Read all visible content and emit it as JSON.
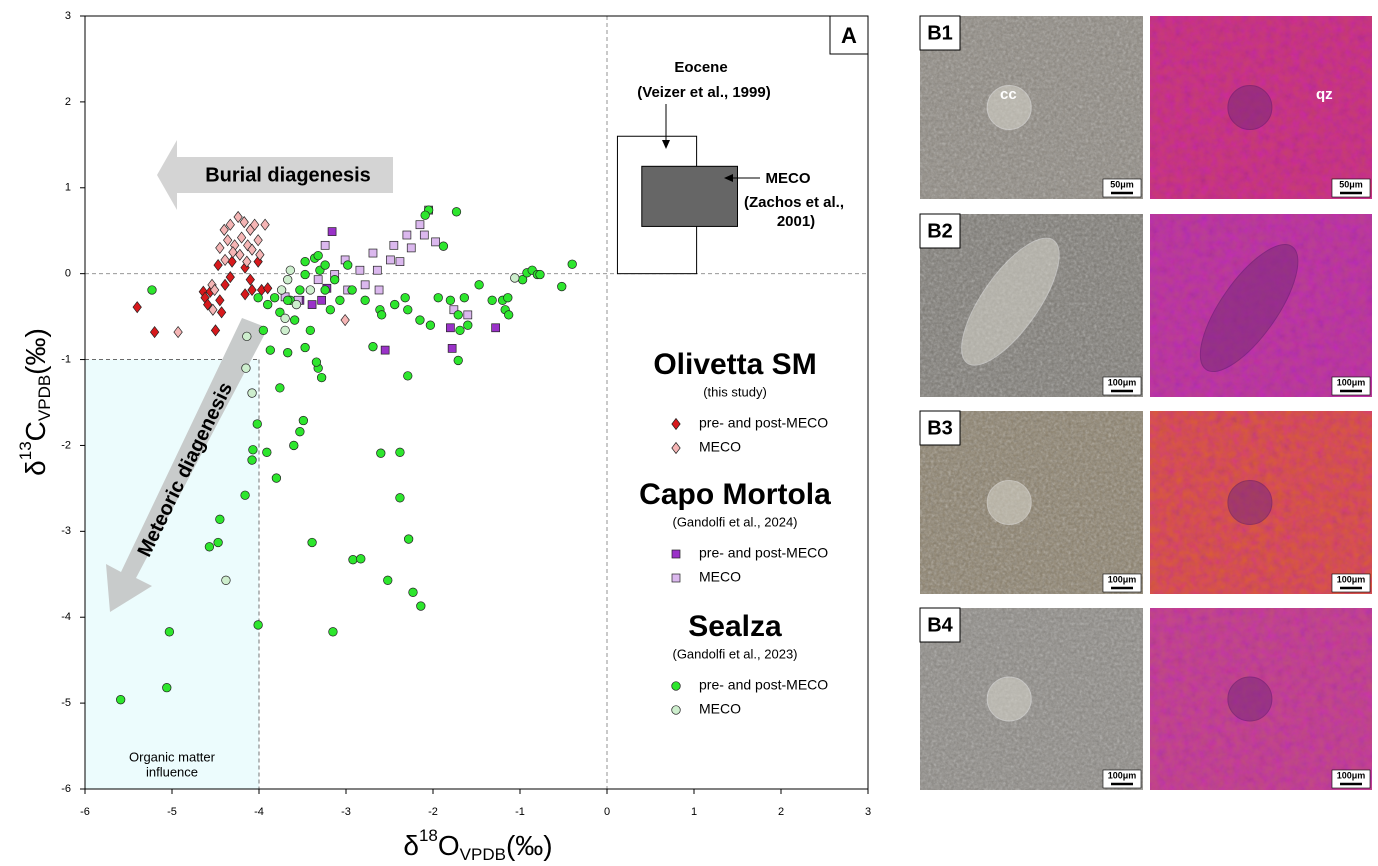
{
  "chart_data": {
    "type": "scatter",
    "panel_label": "A",
    "xlim": [
      -6,
      3
    ],
    "ylim": [
      -6,
      3
    ],
    "xticks": [
      -6,
      -5,
      -4,
      -3,
      -2,
      -1,
      0,
      1,
      2,
      3
    ],
    "yticks": [
      -6,
      -5,
      -4,
      -3,
      -2,
      -1,
      0,
      1,
      2,
      3
    ],
    "x_label": {
      "symbol": "δ",
      "isotope": "18",
      "element": "O",
      "subscript": "VPDB",
      "unit": "(‰)"
    },
    "y_label": {
      "symbol": "δ",
      "isotope": "13",
      "element": "C",
      "subscript": "VPDB",
      "unit": "(‰)"
    },
    "reference_lines": {
      "x": 0,
      "y": 0
    },
    "region": {
      "xlim": [
        -6,
        -4
      ],
      "ylim": [
        -6,
        -1
      ],
      "label_lines": [
        "Organic matter",
        "influence"
      ],
      "color": "#ecfcfd"
    },
    "eocene_box": {
      "label": "Eocene",
      "source": "(Veizer et al., 1999)",
      "xlim": [
        0.12,
        1.03
      ],
      "ylim": [
        0,
        1.6
      ]
    },
    "meco_box": {
      "label": "MECO",
      "source_lines": [
        "(Zachos et al.,",
        "2001)"
      ],
      "xlim": [
        0.4,
        1.5
      ],
      "ylim": [
        0.55,
        1.25
      ],
      "color": "#666666"
    },
    "arrows": {
      "burial": "Burial diagenesis",
      "meteoric": "Meteoric diagenesis"
    },
    "groups": [
      {
        "title": "Olivetta SM",
        "subtitle": "(this study)",
        "series": [
          {
            "name": "pre- and post-MECO",
            "marker": "diamond",
            "color": "#d7191c",
            "x": [
              -5.4,
              -5.2,
              -4.64,
              -4.5,
              -4.62,
              -4.59,
              -4.45,
              -4.43,
              -4.33,
              -4.31,
              -4.16,
              -4.1,
              -4.08,
              -4.01,
              -3.97,
              -3.9,
              -4.47,
              -4.39,
              -4.16,
              -4.56
            ],
            "y": [
              -0.39,
              -0.68,
              -0.21,
              -0.66,
              -0.28,
              -0.36,
              -0.31,
              -0.45,
              -0.04,
              0.14,
              0.07,
              -0.07,
              -0.19,
              0.14,
              -0.19,
              -0.17,
              0.1,
              -0.13,
              -0.24,
              -0.21
            ]
          },
          {
            "name": "MECO",
            "marker": "diamond",
            "color": "#f5b5b5",
            "x": [
              -4.93,
              -4.53,
              -4.54,
              -4.4,
              -4.33,
              -4.24,
              -4.17,
              -4.1,
              -4.05,
              -3.93,
              -4.36,
              -4.28,
              -4.2,
              -4.13,
              -4.3,
              -4.22,
              -4.08,
              -4.01,
              -4.39,
              -4.45,
              -4.51,
              -3.01,
              -3.99,
              -4.14
            ],
            "y": [
              -0.68,
              -0.42,
              -0.13,
              0.51,
              0.57,
              0.66,
              0.6,
              0.51,
              0.57,
              0.57,
              0.39,
              0.33,
              0.42,
              0.33,
              0.25,
              0.22,
              0.28,
              0.39,
              0.16,
              0.3,
              -0.19,
              -0.54,
              0.22,
              0.14
            ]
          }
        ]
      },
      {
        "title": "Capo Mortola",
        "subtitle": "(Gandolfi et al., 2024)",
        "series": [
          {
            "name": "pre- and post-MECO",
            "marker": "square",
            "color": "#9a32c8",
            "x": [
              -3.16,
              -2.55,
              -1.8,
              -1.78,
              -1.28,
              -3.28,
              -3.39,
              -3.53,
              -3.22
            ],
            "y": [
              0.49,
              -0.89,
              -0.63,
              -0.87,
              -0.63,
              -0.31,
              -0.36,
              -0.31,
              -0.17
            ]
          },
          {
            "name": "MECO",
            "marker": "square",
            "color": "#dbb8ee",
            "x": [
              -3.7,
              -3.55,
              -3.24,
              -3.01,
              -2.98,
              -2.78,
              -2.69,
              -2.64,
              -2.62,
              -2.49,
              -2.45,
              -2.38,
              -2.3,
              -2.25,
              -2.15,
              -2.1,
              -2.05,
              -1.97,
              -1.76,
              -1.6,
              -2.84,
              -3.13,
              -3.32
            ],
            "y": [
              -0.27,
              -0.31,
              0.33,
              0.16,
              -0.19,
              -0.13,
              0.24,
              0.04,
              -0.19,
              0.16,
              0.33,
              0.14,
              0.45,
              0.3,
              0.57,
              0.45,
              0.74,
              0.37,
              -0.42,
              -0.48,
              0.04,
              -0.01,
              -0.07
            ]
          }
        ]
      },
      {
        "title": "Sealza",
        "subtitle": "(Gandolfi et al., 2023)",
        "series": [
          {
            "name": "pre- and post-MECO",
            "marker": "circle",
            "color": "#2de62d",
            "x": [
              -5.59,
              -5.06,
              -5.03,
              -5.23,
              -4.57,
              -4.47,
              -4.45,
              -4.16,
              -4.01,
              -4.08,
              -4.07,
              -4.02,
              -3.91,
              -3.8,
              -3.76,
              -3.67,
              -3.6,
              -3.53,
              -3.49,
              -3.39,
              -3.15,
              -3.32,
              -3.34,
              -3.28,
              -3.47,
              -2.92,
              -2.83,
              -2.6,
              -2.52,
              -2.38,
              -2.38,
              -2.28,
              -2.23,
              -2.14,
              -2.29,
              -2.69,
              -3.95,
              -3.87,
              -4.01,
              -3.9,
              -3.82,
              -3.64,
              -3.53,
              -3.47,
              -3.47,
              -3.36,
              -3.3,
              -3.32,
              -3.24,
              -3.13,
              -3.07,
              -2.93,
              -2.78,
              -2.61,
              -2.44,
              -2.32,
              -2.29,
              -2.59,
              -2.15,
              -2.05,
              -2.09,
              -1.88,
              -1.73,
              -2.03,
              -1.94,
              -1.8,
              -1.71,
              -1.69,
              -1.64,
              -1.6,
              -1.71,
              -1.47,
              -1.32,
              -1.2,
              -1.17,
              -1.14,
              -1.13,
              -0.97,
              -0.92,
              -0.86,
              -0.8,
              -0.77,
              -0.52,
              -0.4,
              -2.98,
              -3.67,
              -3.76,
              -3.59,
              -3.41,
              -3.18,
              -3.24
            ],
            "y": [
              -4.96,
              -4.82,
              -4.17,
              -0.19,
              -3.18,
              -3.13,
              -2.86,
              -2.58,
              -4.09,
              -2.17,
              -2.05,
              -1.75,
              -2.08,
              -2.38,
              -1.33,
              -0.92,
              -2.0,
              -1.84,
              -1.71,
              -3.13,
              -4.17,
              -1.1,
              -1.03,
              -1.21,
              -0.86,
              -3.33,
              -3.32,
              -2.09,
              -3.57,
              -2.08,
              -2.61,
              -3.09,
              -3.71,
              -3.87,
              -1.19,
              -0.85,
              -0.66,
              -0.89,
              -0.28,
              -0.36,
              -0.28,
              -0.31,
              -0.19,
              -0.01,
              0.14,
              0.18,
              0.04,
              0.21,
              0.1,
              -0.07,
              -0.31,
              -0.19,
              -0.31,
              -0.42,
              -0.36,
              -0.28,
              -0.42,
              -0.48,
              -0.54,
              0.74,
              0.68,
              0.32,
              0.72,
              -0.6,
              -0.28,
              -0.31,
              -0.48,
              -0.66,
              -0.28,
              -0.6,
              -1.01,
              -0.13,
              -0.31,
              -0.31,
              -0.42,
              -0.28,
              -0.48,
              -0.07,
              0.01,
              0.04,
              -0.01,
              -0.01,
              -0.15,
              0.11,
              0.1,
              -0.31,
              -0.45,
              -0.54,
              -0.66,
              -0.42,
              -0.19
            ]
          },
          {
            "name": "MECO",
            "marker": "circle",
            "color": "#cdeecd",
            "x": [
              -4.14,
              -4.15,
              -4.08,
              -4.38,
              -3.64,
              -3.67,
              -3.57,
              -3.7,
              -3.7,
              -3.41,
              -1.06,
              -3.74
            ],
            "y": [
              -0.73,
              -1.1,
              -1.39,
              -3.57,
              0.04,
              -0.07,
              -0.36,
              -0.52,
              -0.66,
              -0.19,
              -0.05,
              -0.19
            ]
          }
        ]
      }
    ]
  },
  "micrographs": [
    {
      "label": "B1",
      "scale_bars": [
        "50μm",
        "50μm"
      ],
      "callouts": [
        "cc",
        "qz"
      ]
    },
    {
      "label": "B2",
      "scale_bars": [
        "100μm",
        "100μm"
      ]
    },
    {
      "label": "B3",
      "scale_bars": [
        "100μm",
        "100μm"
      ]
    },
    {
      "label": "B4",
      "scale_bars": [
        "100μm",
        "100μm"
      ]
    }
  ]
}
